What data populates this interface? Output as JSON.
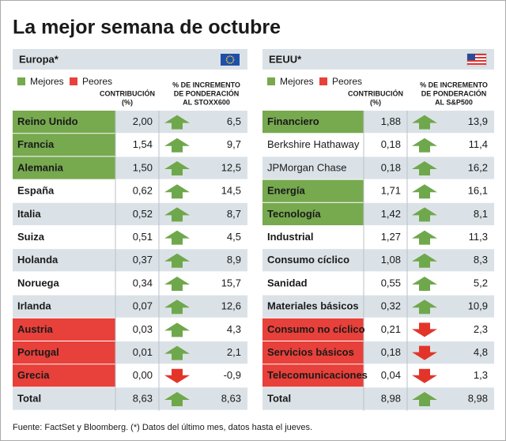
{
  "title": "La mejor semana de octubre",
  "panels": [
    {
      "name": "Europa*",
      "legend": {
        "best": "Mejores",
        "worst": "Peores"
      },
      "columns": {
        "contribution": [
          "CONTRIBUCIÓN",
          "(%)"
        ],
        "increment": [
          "% DE INCREMENTO",
          "DE PONDERACIÓN",
          "AL STOXX600"
        ]
      },
      "rows": [
        {
          "name": "Reino Unido",
          "contribution": "2,00",
          "increment": "6,5",
          "status": "best",
          "arrow": "up",
          "bold": true
        },
        {
          "name": "Francia",
          "contribution": "1,54",
          "increment": "9,7",
          "status": "best",
          "arrow": "up",
          "bold": true
        },
        {
          "name": "Alemania",
          "contribution": "1,50",
          "increment": "12,5",
          "status": "best",
          "arrow": "up",
          "bold": true
        },
        {
          "name": "España",
          "contribution": "0,62",
          "increment": "14,5",
          "status": "neutral",
          "arrow": "up",
          "bold": true
        },
        {
          "name": "Italia",
          "contribution": "0,52",
          "increment": "8,7",
          "status": "neutral",
          "arrow": "up",
          "bold": true
        },
        {
          "name": "Suiza",
          "contribution": "0,51",
          "increment": "4,5",
          "status": "neutral",
          "arrow": "up",
          "bold": true
        },
        {
          "name": "Holanda",
          "contribution": "0,37",
          "increment": "8,9",
          "status": "neutral",
          "arrow": "up",
          "bold": true
        },
        {
          "name": "Noruega",
          "contribution": "0,34",
          "increment": "15,7",
          "status": "neutral",
          "arrow": "up",
          "bold": true
        },
        {
          "name": "Irlanda",
          "contribution": "0,07",
          "increment": "12,6",
          "status": "neutral",
          "arrow": "up",
          "bold": true
        },
        {
          "name": "Austria",
          "contribution": "0,03",
          "increment": "4,3",
          "status": "worst",
          "arrow": "up",
          "bold": true
        },
        {
          "name": "Portugal",
          "contribution": "0,01",
          "increment": "2,1",
          "status": "worst",
          "arrow": "up",
          "bold": true
        },
        {
          "name": "Grecia",
          "contribution": "0,00",
          "increment": "-0,9",
          "status": "worst",
          "arrow": "down",
          "bold": true
        },
        {
          "name": "Total",
          "contribution": "8,63",
          "increment": "8,63",
          "status": "neutral",
          "arrow": "up",
          "bold": true
        }
      ]
    },
    {
      "name": "EEUU*",
      "legend": {
        "best": "Mejores",
        "worst": "Peores"
      },
      "columns": {
        "contribution": [
          "CONTRIBUCIÓN",
          "(%)"
        ],
        "increment": [
          "% DE INCREMENTO",
          "DE PONDERACIÓN",
          "AL S&P500"
        ]
      },
      "rows": [
        {
          "name": "Financiero",
          "contribution": "1,88",
          "increment": "13,9",
          "status": "best",
          "arrow": "up",
          "bold": true
        },
        {
          "name": "Berkshire Hathaway",
          "contribution": "0,18",
          "increment": "11,4",
          "status": "neutral",
          "arrow": "up",
          "bold": false
        },
        {
          "name": "JPMorgan Chase",
          "contribution": "0,18",
          "increment": "16,2",
          "status": "neutral",
          "arrow": "up",
          "bold": false
        },
        {
          "name": "Energía",
          "contribution": "1,71",
          "increment": "16,1",
          "status": "best",
          "arrow": "up",
          "bold": true
        },
        {
          "name": "Tecnología",
          "contribution": "1,42",
          "increment": "8,1",
          "status": "best",
          "arrow": "up",
          "bold": true
        },
        {
          "name": "Industrial",
          "contribution": "1,27",
          "increment": "11,3",
          "status": "neutral",
          "arrow": "up",
          "bold": true
        },
        {
          "name": "Consumo cíclico",
          "contribution": "1,08",
          "increment": "8,3",
          "status": "neutral",
          "arrow": "up",
          "bold": true
        },
        {
          "name": "Sanidad",
          "contribution": "0,55",
          "increment": "5,2",
          "status": "neutral",
          "arrow": "up",
          "bold": true
        },
        {
          "name": "Materiales básicos",
          "contribution": "0,32",
          "increment": "10,9",
          "status": "neutral",
          "arrow": "up",
          "bold": true
        },
        {
          "name": "Consumo no cíclico",
          "contribution": "0,21",
          "increment": "2,3",
          "status": "worst",
          "arrow": "down",
          "bold": true
        },
        {
          "name": "Servicios básicos",
          "contribution": "0,18",
          "increment": "4,8",
          "status": "worst",
          "arrow": "down",
          "bold": true
        },
        {
          "name": "Telecomunicaciones",
          "contribution": "0,04",
          "increment": "1,3",
          "status": "worst",
          "arrow": "down",
          "bold": true
        },
        {
          "name": "Total",
          "contribution": "8,98",
          "increment": "8,98",
          "status": "neutral",
          "arrow": "up",
          "bold": true
        }
      ]
    }
  ],
  "source": "Fuente: FactSet y Bloomberg. (*) Datos del último mes, datos hasta el jueves."
}
